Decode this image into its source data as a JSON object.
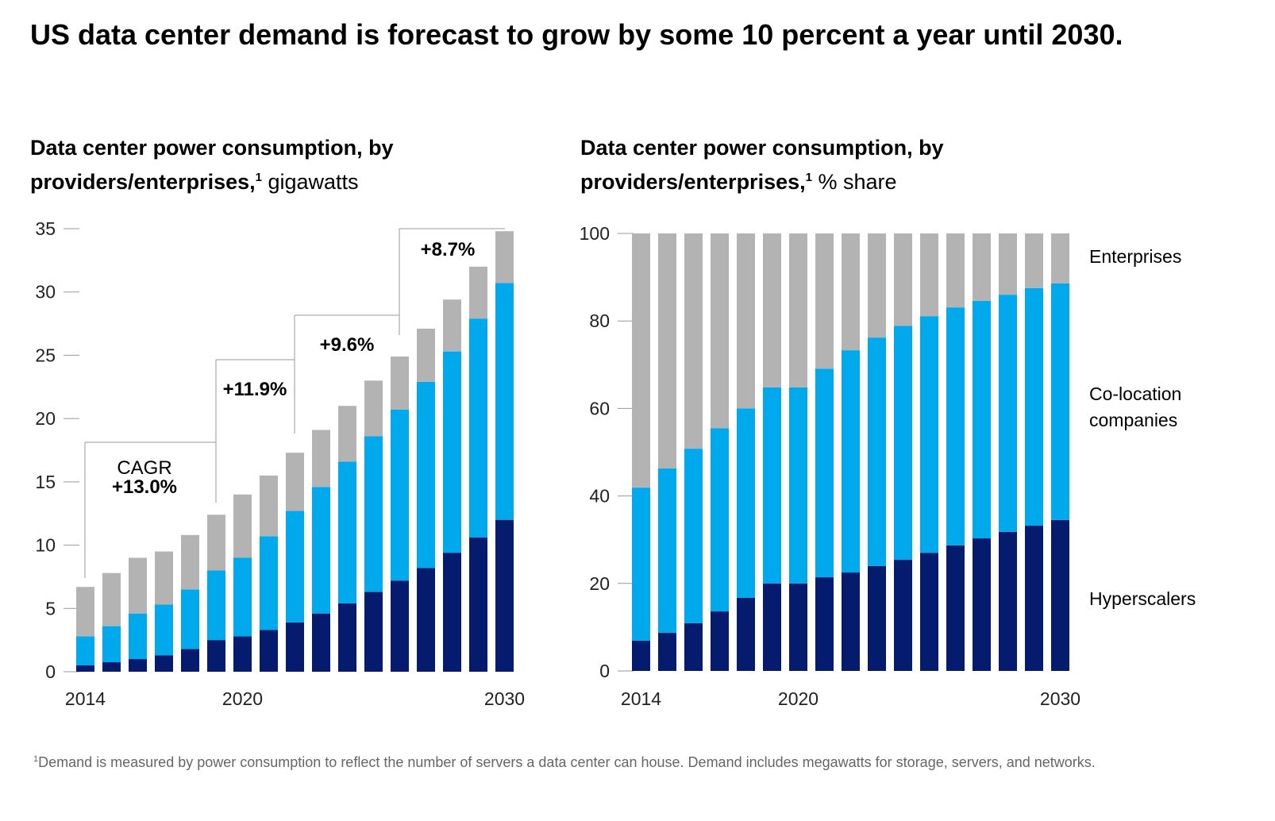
{
  "title": "US data center demand is forecast to grow by some 10 percent a year until 2030.",
  "footnote": {
    "marker": "1",
    "text": "Demand is measured by power consumption to reflect the number of servers a data center can house. Demand includes megawatts for storage, servers, and networks."
  },
  "colors": {
    "hyperscalers": "#051c6e",
    "colocation": "#00a9ec",
    "enterprises": "#b3b3b3"
  },
  "chart_data": [
    {
      "type": "bar",
      "stacked": true,
      "title": "Data center power consumption, by providers/enterprises,",
      "title_marker": "1",
      "unit": "gigawatts",
      "categories": [
        2014,
        2015,
        2016,
        2017,
        2018,
        2019,
        2020,
        2021,
        2022,
        2023,
        2024,
        2025,
        2026,
        2027,
        2028,
        2029,
        2030
      ],
      "x_tick_labels": [
        "2014",
        "2020",
        "2030"
      ],
      "ylim": [
        0,
        35
      ],
      "y_ticks": [
        "0",
        "5",
        "10",
        "15",
        "20",
        "25",
        "30",
        "35"
      ],
      "series": [
        {
          "key": "hyperscalers",
          "values": [
            0.5,
            0.75,
            1.0,
            1.3,
            1.8,
            2.5,
            2.8,
            3.3,
            3.9,
            4.6,
            5.4,
            6.3,
            7.2,
            8.2,
            9.4,
            10.6,
            12.0
          ]
        },
        {
          "key": "colocation",
          "values": [
            2.3,
            2.85,
            3.6,
            4.0,
            4.7,
            5.5,
            6.2,
            7.4,
            8.8,
            10.0,
            11.2,
            12.3,
            13.5,
            14.7,
            15.9,
            17.3,
            18.7
          ]
        },
        {
          "key": "enterprises",
          "values": [
            3.9,
            4.2,
            4.4,
            4.2,
            4.3,
            4.4,
            5.0,
            4.8,
            4.6,
            4.5,
            4.4,
            4.4,
            4.2,
            4.2,
            4.1,
            4.1,
            4.1
          ]
        }
      ],
      "annotations": {
        "cagr_label": "CAGR",
        "periods": [
          {
            "from": 2014,
            "to": 2019,
            "label": "+13.0%"
          },
          {
            "from": 2019,
            "to": 2022,
            "label": "+11.9%"
          },
          {
            "from": 2022,
            "to": 2026,
            "label": "+9.6%"
          },
          {
            "from": 2026,
            "to": 2030,
            "label": "+8.7%"
          }
        ]
      }
    },
    {
      "type": "bar",
      "stacked": true,
      "title": "Data center power consumption, by providers/enterprises,",
      "title_marker": "1",
      "unit": "% share",
      "categories": [
        2014,
        2015,
        2016,
        2017,
        2018,
        2019,
        2020,
        2021,
        2022,
        2023,
        2024,
        2025,
        2026,
        2027,
        2028,
        2029,
        2030
      ],
      "x_tick_labels": [
        "2014",
        "2020",
        "2030"
      ],
      "ylim": [
        0,
        100
      ],
      "y_ticks": [
        "0",
        "20",
        "40",
        "60",
        "80",
        "100"
      ],
      "legend": [
        "Enterprises",
        "Co-location companies",
        "Hyperscalers"
      ],
      "legend_placement": "right",
      "series": [
        {
          "key": "hyperscalers",
          "name": "Hyperscalers",
          "values": [
            6.9,
            8.7,
            10.9,
            13.6,
            16.7,
            20,
            20,
            21.4,
            22.5,
            24,
            25.4,
            27,
            28.7,
            30.3,
            31.8,
            33.2,
            34.5
          ]
        },
        {
          "key": "colocation",
          "name": "Co-location companies",
          "values": [
            35,
            37.6,
            39.9,
            41.9,
            43.3,
            44.8,
            44.8,
            47.7,
            50.8,
            52.2,
            53.5,
            54.1,
            54.4,
            54.3,
            54.2,
            54.3,
            54.1
          ]
        },
        {
          "key": "enterprises",
          "name": "Enterprises",
          "values": [
            58.1,
            53.7,
            49.2,
            44.5,
            40,
            35.2,
            35.2,
            30.9,
            26.7,
            23.8,
            21.1,
            18.9,
            16.9,
            15.4,
            14,
            12.5,
            11.4
          ]
        }
      ]
    }
  ]
}
